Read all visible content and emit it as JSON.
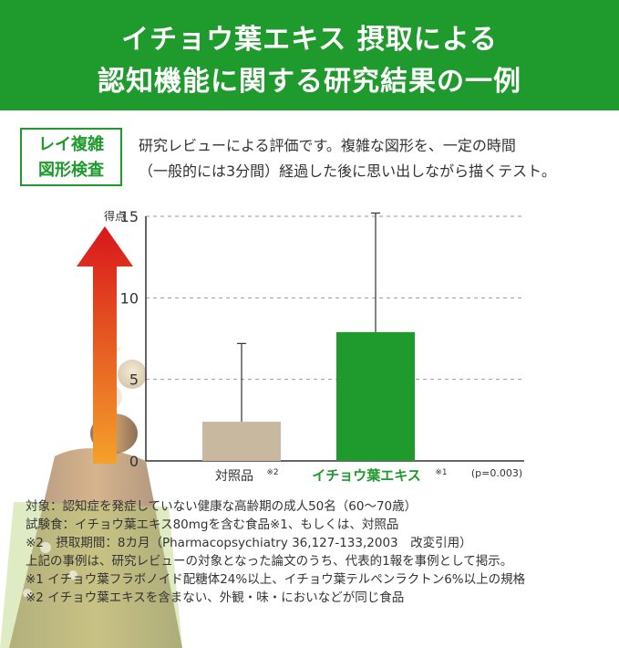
{
  "header": {
    "line1": "イチョウ葉エキス 摂取による",
    "line2": "認知機能に関する研究結果の一例"
  },
  "test": {
    "name_line1": "レイ複雑",
    "name_line2": "図形検査",
    "desc_line1": "研究レビューによる評価です。複雑な図形を、一定の時間",
    "desc_line2": "（一般的には3分間）経過した後に思い出しながら描くテスト。"
  },
  "chart_data": {
    "type": "bar",
    "ylabel": "得点",
    "ylim": [
      0,
      15
    ],
    "yticks": [
      "0",
      "5",
      "10",
      "15"
    ],
    "grid": true,
    "categories": [
      {
        "label": "対照品",
        "note": "※2",
        "color": "#c9b8a0"
      },
      {
        "label": "イチョウ葉エキス",
        "note": "※1",
        "color": "#1f9a2c"
      }
    ],
    "values": [
      2.4,
      7.9
    ],
    "error_upper": [
      7.2,
      15.2
    ],
    "p_value_text": "(p=0.003)"
  },
  "notes": [
    "対象：認知症を発症していない健康な高齢期の成人50名（60〜70歳）",
    "試験食：イチョウ葉エキス80mgを含む食品※1、もしくは、対照品",
    "※2　摂取期間：8カ月（Pharmacopsychiatry 36,127-133,2003　改変引用）",
    "上記の事例は、研究レビューの対象となった論文のうち、代表的1報を事例として掲示。",
    "※1 イチョウ葉フラボノイド配糖体24%以上、イチョウ葉テルペンラクトン6%以上の規格",
    "※2 イチョウ葉エキスを含まない、外観・味・においなどが同じ食品"
  ],
  "colors": {
    "brand_green": "#1f9a2c",
    "control_bar": "#c9b8a0",
    "arrow_top": "#d8161b",
    "arrow_bottom": "#f4a12a"
  }
}
